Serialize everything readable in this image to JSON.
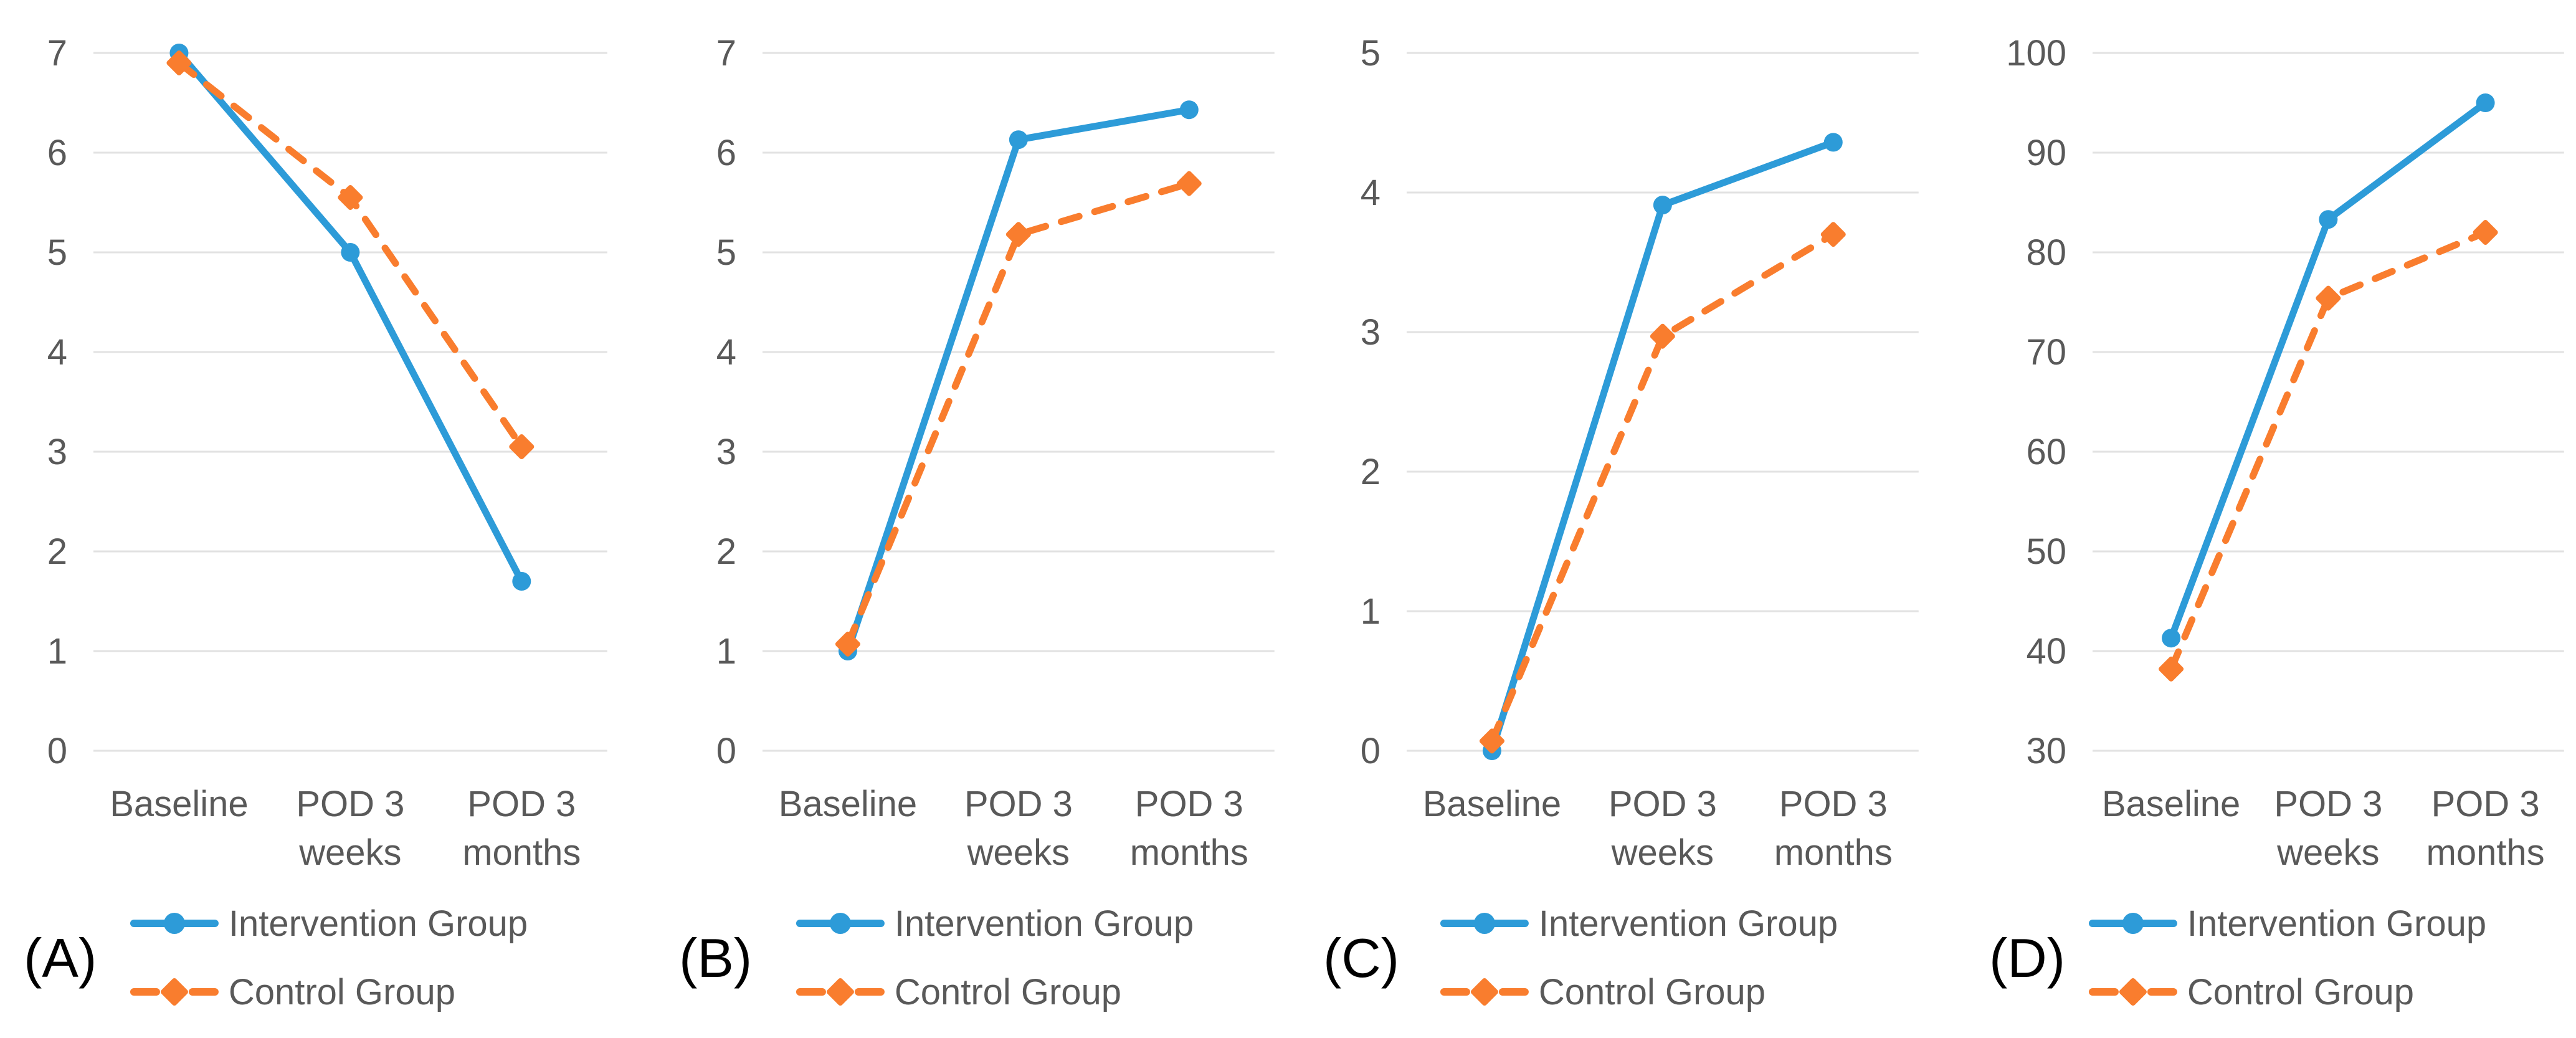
{
  "figure": {
    "description": "Four-panel line chart figure comparing Intervention Group and Control Group at Baseline, POD 3 weeks, and POD 3 months",
    "panel_labels": [
      "(A)",
      "(B)",
      "(C)",
      "(D)"
    ]
  },
  "styles": {
    "background": "#ffffff",
    "intervention_color": "#2D9BD8",
    "control_color": "#F97D2E",
    "grid_color": "#E2E2E2",
    "tick_text_color": "#595959",
    "legend_text_color": "#595959",
    "panel_label_color": "#000000"
  },
  "legend": {
    "items": [
      {
        "label": "Intervention Group",
        "marker": "circle",
        "line_style": "solid",
        "color": "#2D9BD8"
      },
      {
        "label": "Control Group",
        "marker": "diamond",
        "line_style": "dashed",
        "color": "#F97D2E"
      }
    ],
    "position": "bottom-left"
  },
  "chart_data": [
    {
      "type": "line",
      "panel_label": "(A)",
      "categories": [
        "Baseline",
        "POD 3 weeks",
        "POD 3 months"
      ],
      "x_tick_lines": [
        [
          "Baseline"
        ],
        [
          "POD 3",
          "weeks"
        ],
        [
          "POD 3",
          "months"
        ]
      ],
      "ylim": [
        0,
        7
      ],
      "yticks": [
        0,
        1,
        2,
        3,
        4,
        5,
        6,
        7
      ],
      "grid": true,
      "legend_position": "bottom-left",
      "series": [
        {
          "name": "Intervention Group",
          "color": "#2D9BD8",
          "line_style": "solid",
          "marker": "circle",
          "values": [
            7.0,
            5.0,
            1.7
          ]
        },
        {
          "name": "Control Group",
          "color": "#F97D2E",
          "line_style": "dashed",
          "marker": "diamond",
          "values": [
            6.9,
            5.55,
            3.05
          ]
        }
      ]
    },
    {
      "type": "line",
      "panel_label": "(B)",
      "categories": [
        "Baseline",
        "POD 3 weeks",
        "POD 3 months"
      ],
      "x_tick_lines": [
        [
          "Baseline"
        ],
        [
          "POD 3",
          "weeks"
        ],
        [
          "POD 3",
          "months"
        ]
      ],
      "ylim": [
        0,
        7
      ],
      "yticks": [
        0,
        1,
        2,
        3,
        4,
        5,
        6,
        7
      ],
      "grid": true,
      "legend_position": "bottom-left",
      "series": [
        {
          "name": "Intervention Group",
          "color": "#2D9BD8",
          "line_style": "solid",
          "marker": "circle",
          "values": [
            1.0,
            6.13,
            6.43
          ]
        },
        {
          "name": "Control Group",
          "color": "#F97D2E",
          "line_style": "dashed",
          "marker": "diamond",
          "values": [
            1.07,
            5.18,
            5.69
          ]
        }
      ]
    },
    {
      "type": "line",
      "panel_label": "(C)",
      "categories": [
        "Baseline",
        "POD 3 weeks",
        "POD 3 months"
      ],
      "x_tick_lines": [
        [
          "Baseline"
        ],
        [
          "POD 3",
          "weeks"
        ],
        [
          "POD 3",
          "months"
        ]
      ],
      "ylim": [
        0,
        5
      ],
      "yticks": [
        0,
        1,
        2,
        3,
        4,
        5
      ],
      "grid": true,
      "legend_position": "bottom-left",
      "series": [
        {
          "name": "Intervention Group",
          "color": "#2D9BD8",
          "line_style": "solid",
          "marker": "circle",
          "values": [
            0.0,
            3.91,
            4.36
          ]
        },
        {
          "name": "Control Group",
          "color": "#F97D2E",
          "line_style": "dashed",
          "marker": "diamond",
          "values": [
            0.07,
            2.97,
            3.7
          ]
        }
      ]
    },
    {
      "type": "line",
      "panel_label": "(D)",
      "categories": [
        "Baseline",
        "POD 3 weeks",
        "POD 3 months"
      ],
      "x_tick_lines": [
        [
          "Baseline"
        ],
        [
          "POD 3",
          "weeks"
        ],
        [
          "POD 3",
          "months"
        ]
      ],
      "ylim": [
        30,
        100
      ],
      "yticks": [
        30,
        40,
        50,
        60,
        70,
        80,
        90,
        100
      ],
      "grid": true,
      "legend_position": "bottom-left",
      "series": [
        {
          "name": "Intervention Group",
          "color": "#2D9BD8",
          "line_style": "solid",
          "marker": "circle",
          "values": [
            41.3,
            83.3,
            95.0
          ]
        },
        {
          "name": "Control Group",
          "color": "#F97D2E",
          "line_style": "dashed",
          "marker": "diamond",
          "values": [
            38.2,
            75.4,
            82.0
          ]
        }
      ]
    }
  ]
}
